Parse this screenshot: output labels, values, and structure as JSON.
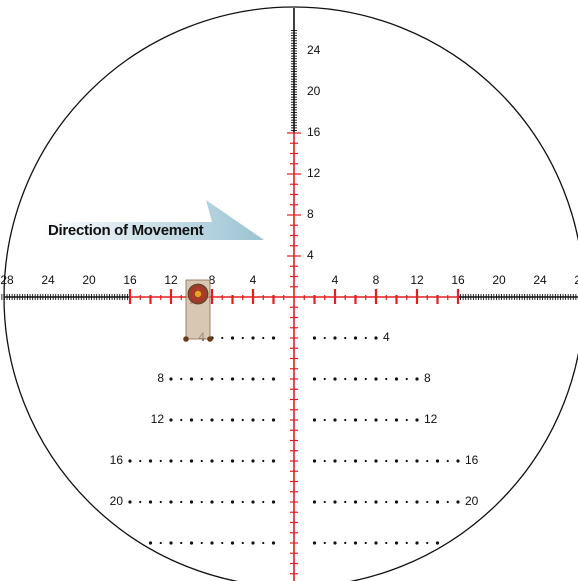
{
  "annotation": "Direction of Movement",
  "vertical_scale": [
    "4",
    "8",
    "12",
    "16",
    "20",
    "24"
  ],
  "horizontal_scale": [
    "4",
    "8",
    "12",
    "16",
    "20",
    "24",
    "28"
  ],
  "holdover_rows": [
    "4",
    "8",
    "12",
    "16",
    "20"
  ]
}
